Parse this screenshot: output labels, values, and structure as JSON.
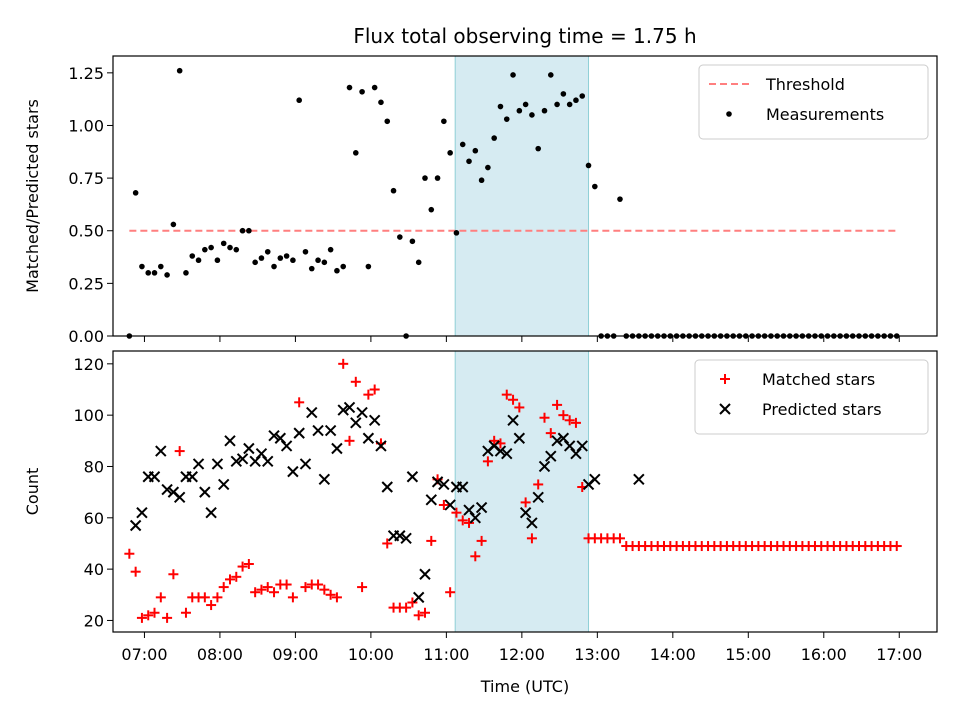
{
  "title": "Flux total observing time = 1.75 h",
  "chart_data": [
    {
      "type": "scatter",
      "ylabel": "Matched/Predicted stars",
      "xlim": [
        "06:35",
        "17:30"
      ],
      "ylim": [
        0,
        1.33
      ],
      "yticks": [
        0.0,
        0.25,
        0.5,
        0.75,
        1.0,
        1.25
      ],
      "ytick_labels": [
        "0.00",
        "0.25",
        "0.50",
        "0.75",
        "1.00",
        "1.25"
      ],
      "shaded_span": [
        "11:07",
        "12:53"
      ],
      "legend_position": "top-right",
      "threshold": {
        "name": "Threshold",
        "value": 0.5,
        "x_range": [
          "06:48",
          "17:00"
        ],
        "color": "#ff7f7f"
      },
      "series": [
        {
          "name": "Measurements",
          "color": "#000000",
          "marker": "dot",
          "x": [
            "06:48",
            "06:53",
            "06:58",
            "07:03",
            "07:08",
            "07:13",
            "07:18",
            "07:23",
            "07:28",
            "07:33",
            "07:38",
            "07:43",
            "07:48",
            "07:53",
            "07:58",
            "08:03",
            "08:08",
            "08:13",
            "08:18",
            "08:23",
            "08:28",
            "08:33",
            "08:38",
            "08:43",
            "08:48",
            "08:53",
            "08:58",
            "09:03",
            "09:08",
            "09:13",
            "09:18",
            "09:23",
            "09:28",
            "09:33",
            "09:38",
            "09:43",
            "09:48",
            "09:53",
            "09:58",
            "10:03",
            "10:08",
            "10:13",
            "10:18",
            "10:23",
            "10:28",
            "10:33",
            "10:38",
            "10:43",
            "10:48",
            "10:53",
            "10:58",
            "11:03",
            "11:08",
            "11:13",
            "11:18",
            "11:23",
            "11:28",
            "11:33",
            "11:38",
            "11:43",
            "11:48",
            "11:53",
            "11:58",
            "12:03",
            "12:08",
            "12:13",
            "12:18",
            "12:23",
            "12:28",
            "12:33",
            "12:38",
            "12:43",
            "12:48",
            "12:53",
            "12:58",
            "13:03",
            "13:08",
            "13:13",
            "13:18",
            "13:23",
            "13:28",
            "13:33",
            "13:38",
            "13:43",
            "13:48",
            "13:53",
            "13:58",
            "14:03",
            "14:08",
            "14:13",
            "14:18",
            "14:23",
            "14:28",
            "14:33",
            "14:38",
            "14:43",
            "14:48",
            "14:53",
            "14:58",
            "15:03",
            "15:08",
            "15:13",
            "15:18",
            "15:23",
            "15:28",
            "15:33",
            "15:38",
            "15:43",
            "15:48",
            "15:53",
            "15:58",
            "16:03",
            "16:08",
            "16:13",
            "16:18",
            "16:23",
            "16:28",
            "16:33",
            "16:38",
            "16:43",
            "16:48",
            "16:53",
            "16:58"
          ],
          "y": [
            0.0,
            0.68,
            0.33,
            0.3,
            0.3,
            0.33,
            0.29,
            0.53,
            1.26,
            0.3,
            0.38,
            0.36,
            0.41,
            0.42,
            0.36,
            0.44,
            0.42,
            0.41,
            0.5,
            0.5,
            0.35,
            0.37,
            0.4,
            0.33,
            0.37,
            0.38,
            0.36,
            1.12,
            0.4,
            0.32,
            0.36,
            0.35,
            0.41,
            0.31,
            0.33,
            1.18,
            0.87,
            1.16,
            0.33,
            1.18,
            1.11,
            1.02,
            0.69,
            0.47,
            0.0,
            0.45,
            0.35,
            0.75,
            0.6,
            0.75,
            1.02,
            0.87,
            0.49,
            0.91,
            0.83,
            0.88,
            0.74,
            0.8,
            0.94,
            1.09,
            1.03,
            1.24,
            1.07,
            1.1,
            1.05,
            0.89,
            1.07,
            1.24,
            1.1,
            1.15,
            1.1,
            1.12,
            1.14,
            0.81,
            0.71,
            0.0,
            0.0,
            0.0,
            0.65,
            0.0,
            0.0,
            0.0,
            0.0,
            0.0,
            0.0,
            0.0,
            0.0,
            0.0,
            0.0,
            0.0,
            0.0,
            0.0,
            0.0,
            0.0,
            0.0,
            0.0,
            0.0,
            0.0,
            0.0,
            0.0,
            0.0,
            0.0,
            0.0,
            0.0,
            0.0,
            0.0,
            0.0,
            0.0,
            0.0,
            0.0,
            0.0,
            0.0,
            0.0,
            0.0,
            0.0,
            0.0,
            0.0,
            0.0,
            0.0,
            0.0,
            0.0,
            0.0,
            0.0
          ]
        }
      ]
    },
    {
      "type": "scatter",
      "xlabel": "Time (UTC)",
      "ylabel": "Count",
      "xlim": [
        "06:35",
        "17:30"
      ],
      "ylim": [
        15.5,
        125
      ],
      "yticks": [
        20,
        40,
        60,
        80,
        100,
        120
      ],
      "ytick_labels": [
        "20",
        "40",
        "60",
        "80",
        "100",
        "120"
      ],
      "xticks": [
        "07:00",
        "08:00",
        "09:00",
        "10:00",
        "11:00",
        "12:00",
        "13:00",
        "14:00",
        "15:00",
        "16:00",
        "17:00"
      ],
      "xtick_labels": [
        "07:00",
        "08:00",
        "09:00",
        "10:00",
        "11:00",
        "12:00",
        "13:00",
        "14:00",
        "15:00",
        "16:00",
        "17:00"
      ],
      "shaded_span": [
        "11:07",
        "12:53"
      ],
      "legend_position": "top-right",
      "series": [
        {
          "name": "Matched stars",
          "color": "#ff0000",
          "marker": "plus",
          "x": [
            "06:48",
            "06:53",
            "06:58",
            "07:03",
            "07:08",
            "07:13",
            "07:18",
            "07:23",
            "07:28",
            "07:33",
            "07:38",
            "07:43",
            "07:48",
            "07:53",
            "07:58",
            "08:03",
            "08:08",
            "08:13",
            "08:18",
            "08:23",
            "08:28",
            "08:33",
            "08:38",
            "08:43",
            "08:48",
            "08:53",
            "08:58",
            "09:03",
            "09:08",
            "09:13",
            "09:18",
            "09:23",
            "09:28",
            "09:33",
            "09:38",
            "09:43",
            "09:48",
            "09:53",
            "09:58",
            "10:03",
            "10:08",
            "10:13",
            "10:18",
            "10:23",
            "10:28",
            "10:33",
            "10:38",
            "10:43",
            "10:48",
            "10:53",
            "10:58",
            "11:03",
            "11:08",
            "11:13",
            "11:18",
            "11:23",
            "11:28",
            "11:33",
            "11:38",
            "11:43",
            "11:48",
            "11:53",
            "11:58",
            "12:03",
            "12:08",
            "12:13",
            "12:18",
            "12:23",
            "12:28",
            "12:33",
            "12:38",
            "12:43",
            "12:48",
            "12:53",
            "12:58",
            "13:03",
            "13:08",
            "13:13",
            "13:18",
            "13:23",
            "13:28",
            "13:33",
            "13:38",
            "13:43",
            "13:48",
            "13:53",
            "13:58",
            "14:03",
            "14:08",
            "14:13",
            "14:18",
            "14:23",
            "14:28",
            "14:33",
            "14:38",
            "14:43",
            "14:48",
            "14:53",
            "14:58",
            "15:03",
            "15:08",
            "15:13",
            "15:18",
            "15:23",
            "15:28",
            "15:33",
            "15:38",
            "15:43",
            "15:48",
            "15:53",
            "15:58",
            "16:03",
            "16:08",
            "16:13",
            "16:18",
            "16:23",
            "16:28",
            "16:33",
            "16:38",
            "16:43",
            "16:48",
            "16:53",
            "16:58"
          ],
          "y": [
            46,
            39,
            21,
            22,
            23,
            29,
            21,
            38,
            86,
            23,
            29,
            29,
            29,
            26,
            29,
            33,
            36,
            37,
            41,
            42,
            31,
            32,
            33,
            31,
            34,
            34,
            29,
            105,
            33,
            34,
            34,
            32,
            30,
            29,
            120,
            90,
            113,
            33,
            108,
            110,
            89,
            50,
            25,
            25,
            25,
            27,
            22,
            23,
            51,
            75,
            65,
            31,
            62,
            59,
            58,
            45,
            51,
            82,
            90,
            89,
            108,
            106,
            103,
            66,
            52,
            73,
            99,
            93,
            104,
            100,
            98,
            97,
            72,
            52,
            52,
            52,
            52,
            52,
            52,
            49,
            49,
            49,
            49,
            49,
            49,
            49,
            49,
            49,
            49,
            49,
            49,
            49,
            49,
            49,
            49,
            49,
            49,
            49,
            49,
            49,
            49,
            49,
            49,
            49,
            49,
            49,
            49,
            49,
            49,
            49,
            49,
            49,
            49,
            49,
            49,
            49,
            49,
            49,
            49,
            49,
            49,
            49,
            49
          ]
        },
        {
          "name": "Predicted stars",
          "color": "#000000",
          "marker": "x",
          "x": [
            "06:53",
            "06:58",
            "07:03",
            "07:08",
            "07:13",
            "07:18",
            "07:23",
            "07:28",
            "07:33",
            "07:38",
            "07:43",
            "07:48",
            "07:53",
            "07:58",
            "08:03",
            "08:08",
            "08:13",
            "08:18",
            "08:23",
            "08:28",
            "08:33",
            "08:38",
            "08:43",
            "08:48",
            "08:53",
            "08:58",
            "09:03",
            "09:08",
            "09:13",
            "09:18",
            "09:23",
            "09:28",
            "09:33",
            "09:38",
            "09:43",
            "09:48",
            "09:53",
            "09:58",
            "10:03",
            "10:08",
            "10:13",
            "10:18",
            "10:23",
            "10:28",
            "10:33",
            "10:38",
            "10:43",
            "10:48",
            "10:53",
            "10:58",
            "11:03",
            "11:08",
            "11:13",
            "11:18",
            "11:23",
            "11:28",
            "11:33",
            "11:38",
            "11:43",
            "11:48",
            "11:53",
            "11:58",
            "12:03",
            "12:08",
            "12:13",
            "12:18",
            "12:23",
            "12:28",
            "12:33",
            "12:38",
            "12:43",
            "12:48",
            "12:53",
            "12:58",
            "13:33"
          ],
          "y": [
            57,
            62,
            76,
            76,
            86,
            71,
            70,
            68,
            76,
            76,
            81,
            70,
            62,
            81,
            73,
            90,
            82,
            83,
            87,
            82,
            85,
            82,
            92,
            91,
            88,
            78,
            93,
            81,
            101,
            94,
            75,
            94,
            87,
            102,
            103,
            97,
            101,
            91,
            98,
            88,
            72,
            53,
            53,
            52,
            76,
            29,
            38,
            67,
            74,
            73,
            65,
            72,
            72,
            63,
            60,
            64,
            86,
            88,
            86,
            85,
            98,
            91,
            62,
            58,
            68,
            80,
            84,
            90,
            91,
            88,
            85,
            88,
            73,
            75,
            75
          ]
        }
      ]
    }
  ]
}
